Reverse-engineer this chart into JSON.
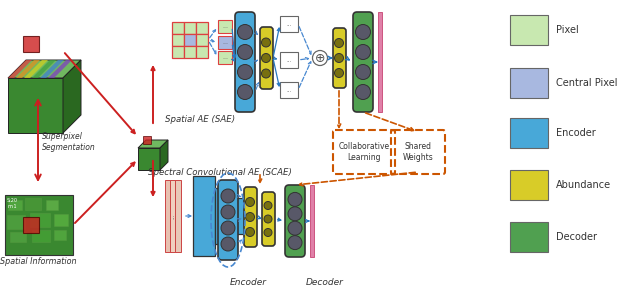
{
  "colors": {
    "pixel_green": "#c8e8b0",
    "central_pixel_blue": "#a8b8e0",
    "encoder_blue": "#48a8d8",
    "abundance_yellow": "#d8cc28",
    "decoder_green": "#50a050",
    "red": "#cc2020",
    "orange_red": "#cc5500",
    "blue_arrow": "#2878c0",
    "dashed_blue": "#4888d0",
    "grid_red": "#dd4040",
    "pink_thin": "#e888a8",
    "circle_dark": "#585868",
    "bg": "#ffffff"
  },
  "legend_items": [
    {
      "label": "Pixel",
      "color": "#c8e8b0"
    },
    {
      "label": "Central Pixel",
      "color": "#a8b8e0"
    },
    {
      "label": "Encoder",
      "color": "#48a8d8"
    },
    {
      "label": "Abundance",
      "color": "#d8cc28"
    },
    {
      "label": "Decoder",
      "color": "#50a050"
    }
  ],
  "texts": {
    "spatial_ae": "Spatial AE (SAE)",
    "spectral_ae": "Spectral Convolutional AE (SCAE)",
    "superpixel": "Superpixel\nSegmentation",
    "spatial_info": "Spatial Information",
    "encoder_label": "Encoder",
    "decoder_label": "Decoder",
    "collab": "Collaborative\nLearning",
    "shared": "Shared\nWeights"
  }
}
